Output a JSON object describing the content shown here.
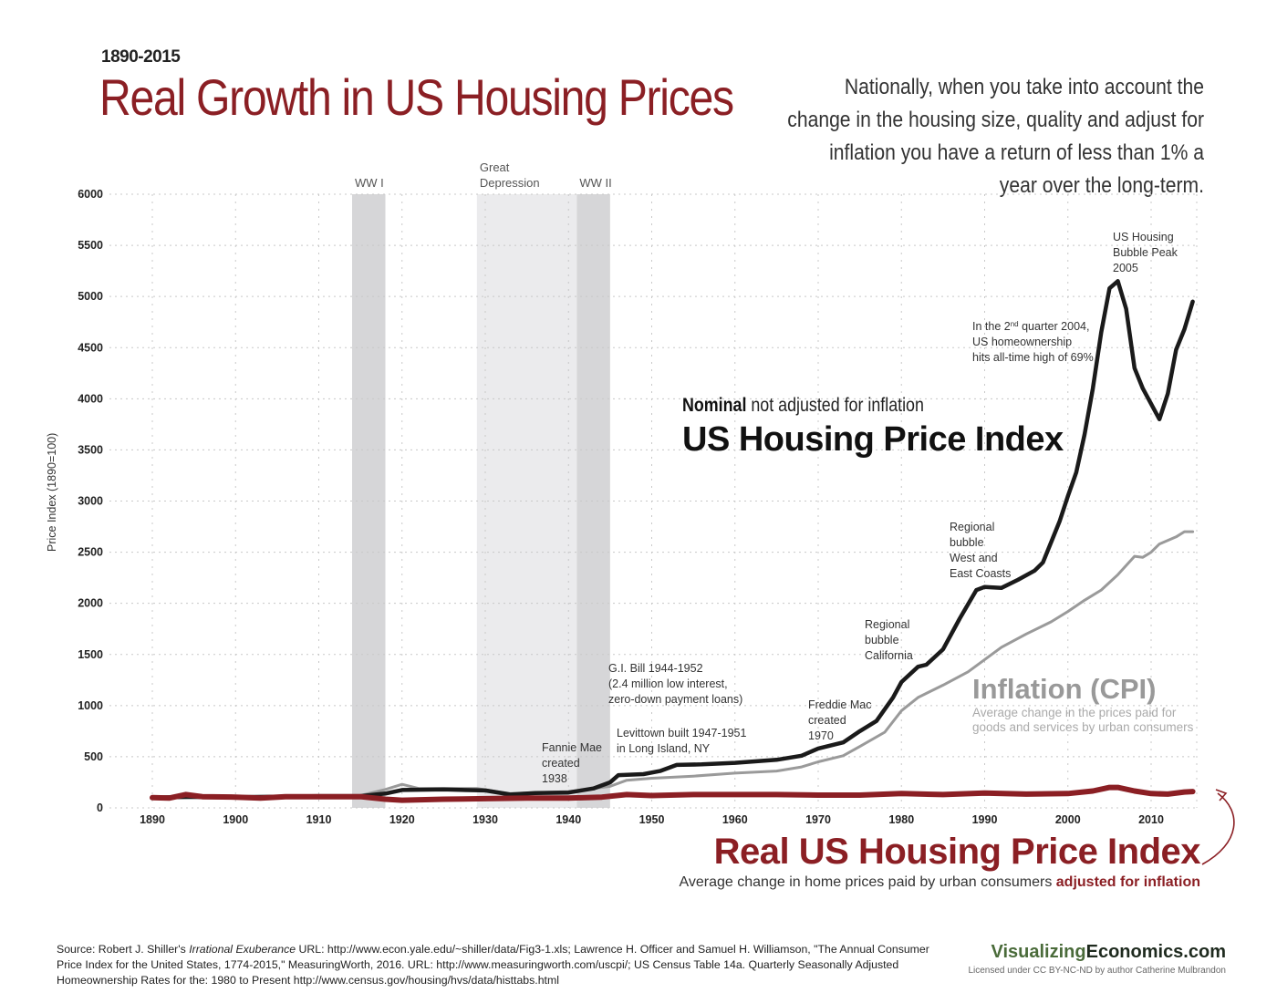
{
  "header": {
    "years": "1890-2015",
    "title": "Real Growth in US Housing Prices",
    "intro": "Nationally, when you take into account the change in the housing size, quality and adjust for inflation you have a return of less than 1% a year over the long-term."
  },
  "labels": {
    "nominal_bold": "Nominal",
    "nominal_rest": " not adjusted for inflation",
    "nominal_title": "US Housing Price Index",
    "cpi_title": "Inflation (CPI)",
    "cpi_desc_1": "Average change in the prices paid for",
    "cpi_desc_2": "goods and services by urban consumers",
    "real_title": "Real US Housing Price Index",
    "real_desc": "Average change in home prices paid by urban consumers ",
    "real_desc_bold": "adjusted for inflation"
  },
  "footer": {
    "source_prefix": "Source: Robert J. Shiller's ",
    "source_italic": "Irrational Exuberance",
    "source_rest": " URL: http://www.econ.yale.edu/~shiller/data/Fig3-1.xls; Lawrence H. Officer and Samuel H. Williamson, \"The Annual Consumer Price Index for the United States, 1774-2015,\" MeasuringWorth, 2016. URL: http://www.measuringworth.com/uscpi/; US Census Table 14a. Quarterly Seasonally Adjusted Homeownership Rates for the: 1980 to Present http://www.census.gov/housing/hvs/data/histtabs.html",
    "brand_a": "Visualizing",
    "brand_b": "Economics.com",
    "license": "Licensed under CC BY-NC-ND by author Catherine Mulbrandon"
  },
  "colors": {
    "nominal": "#1a1a1a",
    "cpi": "#9a9a9a",
    "real": "#8b1f24",
    "band_war": "#d6d6d8",
    "band_depression": "#ebebed",
    "grid": "#c8c8c8"
  },
  "chart_data": {
    "type": "line",
    "title": "Real Growth in US Housing Prices",
    "xlabel": "",
    "ylabel": "Price Index  (1890=100)",
    "xlim": [
      1890,
      2015
    ],
    "ylim": [
      0,
      6000
    ],
    "x_ticks": [
      1890,
      1900,
      1910,
      1920,
      1930,
      1940,
      1950,
      1960,
      1970,
      1980,
      1990,
      2000,
      2010
    ],
    "y_ticks": [
      0,
      500,
      1000,
      1500,
      2000,
      2500,
      3000,
      3500,
      4000,
      4500,
      5000,
      5500,
      6000
    ],
    "grid": true,
    "shaded_periods": [
      {
        "label": "WW I",
        "start": 1914,
        "end": 1918,
        "kind": "war"
      },
      {
        "label": "Great Depression",
        "start": 1929,
        "end": 1941,
        "kind": "depression"
      },
      {
        "label": "WW II",
        "start": 1941,
        "end": 1945,
        "kind": "war"
      }
    ],
    "series": [
      {
        "name": "Nominal US Housing Price Index",
        "points": [
          [
            1890,
            100
          ],
          [
            1895,
            110
          ],
          [
            1900,
            105
          ],
          [
            1905,
            110
          ],
          [
            1910,
            115
          ],
          [
            1915,
            115
          ],
          [
            1918,
            140
          ],
          [
            1920,
            175
          ],
          [
            1925,
            180
          ],
          [
            1930,
            170
          ],
          [
            1933,
            130
          ],
          [
            1936,
            145
          ],
          [
            1940,
            150
          ],
          [
            1943,
            190
          ],
          [
            1945,
            250
          ],
          [
            1946,
            320
          ],
          [
            1949,
            330
          ],
          [
            1951,
            360
          ],
          [
            1953,
            420
          ],
          [
            1956,
            425
          ],
          [
            1960,
            440
          ],
          [
            1965,
            470
          ],
          [
            1968,
            510
          ],
          [
            1970,
            580
          ],
          [
            1973,
            640
          ],
          [
            1975,
            750
          ],
          [
            1977,
            850
          ],
          [
            1979,
            1080
          ],
          [
            1980,
            1230
          ],
          [
            1982,
            1380
          ],
          [
            1983,
            1400
          ],
          [
            1985,
            1550
          ],
          [
            1987,
            1850
          ],
          [
            1989,
            2130
          ],
          [
            1990,
            2160
          ],
          [
            1992,
            2150
          ],
          [
            1994,
            2230
          ],
          [
            1996,
            2320
          ],
          [
            1997,
            2400
          ],
          [
            1998,
            2600
          ],
          [
            1999,
            2800
          ],
          [
            2000,
            3050
          ],
          [
            2001,
            3280
          ],
          [
            2002,
            3650
          ],
          [
            2003,
            4100
          ],
          [
            2004,
            4650
          ],
          [
            2005,
            5080
          ],
          [
            2006,
            5150
          ],
          [
            2007,
            4880
          ],
          [
            2008,
            4300
          ],
          [
            2009,
            4100
          ],
          [
            2011,
            3800
          ],
          [
            2012,
            4050
          ],
          [
            2013,
            4480
          ],
          [
            2014,
            4680
          ],
          [
            2015,
            4950
          ]
        ]
      },
      {
        "name": "Inflation (CPI)",
        "points": [
          [
            1890,
            100
          ],
          [
            1900,
            95
          ],
          [
            1910,
            110
          ],
          [
            1915,
            120
          ],
          [
            1918,
            180
          ],
          [
            1920,
            230
          ],
          [
            1922,
            190
          ],
          [
            1929,
            190
          ],
          [
            1933,
            140
          ],
          [
            1940,
            160
          ],
          [
            1945,
            210
          ],
          [
            1947,
            270
          ],
          [
            1950,
            290
          ],
          [
            1955,
            310
          ],
          [
            1960,
            340
          ],
          [
            1965,
            360
          ],
          [
            1968,
            400
          ],
          [
            1970,
            450
          ],
          [
            1973,
            510
          ],
          [
            1975,
            600
          ],
          [
            1978,
            740
          ],
          [
            1980,
            950
          ],
          [
            1982,
            1080
          ],
          [
            1985,
            1200
          ],
          [
            1988,
            1330
          ],
          [
            1990,
            1450
          ],
          [
            1992,
            1570
          ],
          [
            1995,
            1700
          ],
          [
            1998,
            1820
          ],
          [
            2000,
            1920
          ],
          [
            2002,
            2030
          ],
          [
            2004,
            2130
          ],
          [
            2006,
            2280
          ],
          [
            2008,
            2460
          ],
          [
            2009,
            2450
          ],
          [
            2010,
            2500
          ],
          [
            2011,
            2580
          ],
          [
            2013,
            2650
          ],
          [
            2014,
            2700
          ],
          [
            2015,
            2700
          ]
        ]
      },
      {
        "name": "Real US Housing Price Index",
        "points": [
          [
            1890,
            100
          ],
          [
            1892,
            95
          ],
          [
            1894,
            130
          ],
          [
            1896,
            110
          ],
          [
            1900,
            105
          ],
          [
            1903,
            95
          ],
          [
            1906,
            110
          ],
          [
            1910,
            110
          ],
          [
            1915,
            110
          ],
          [
            1918,
            85
          ],
          [
            1920,
            75
          ],
          [
            1925,
            85
          ],
          [
            1930,
            90
          ],
          [
            1935,
            95
          ],
          [
            1940,
            95
          ],
          [
            1944,
            105
          ],
          [
            1947,
            130
          ],
          [
            1950,
            120
          ],
          [
            1955,
            130
          ],
          [
            1960,
            130
          ],
          [
            1965,
            130
          ],
          [
            1970,
            125
          ],
          [
            1975,
            125
          ],
          [
            1980,
            140
          ],
          [
            1985,
            130
          ],
          [
            1990,
            145
          ],
          [
            1995,
            135
          ],
          [
            2000,
            140
          ],
          [
            2003,
            165
          ],
          [
            2005,
            200
          ],
          [
            2006,
            200
          ],
          [
            2008,
            165
          ],
          [
            2010,
            140
          ],
          [
            2012,
            135
          ],
          [
            2014,
            155
          ],
          [
            2015,
            160
          ]
        ]
      }
    ],
    "annotations": [
      {
        "year": 1938,
        "lines": [
          "Fannie Mae",
          "created",
          "1938"
        ]
      },
      {
        "year": 1944,
        "lines": [
          "G.I. Bill  1944-1952",
          "(2.4 million low interest,",
          "zero-down payment loans)"
        ]
      },
      {
        "year": 1947,
        "lines": [
          "Levittown built 1947-1951",
          "in Long Island, NY"
        ]
      },
      {
        "year": 1970,
        "lines": [
          "Freddie Mac",
          "created",
          "1970"
        ]
      },
      {
        "year": 1985,
        "lines": [
          "Regional",
          "bubble",
          "California"
        ]
      },
      {
        "year": 1989,
        "lines": [
          "Regional",
          "bubble",
          "West and",
          "East Coasts"
        ]
      },
      {
        "year": 2004,
        "lines": [
          "In the 2nd quarter 2004,",
          "US homeownership",
          "hits all-time high of 69%"
        ]
      },
      {
        "year": 2005,
        "lines": [
          "US Housing",
          "Bubble Peak",
          "2005"
        ]
      }
    ]
  }
}
